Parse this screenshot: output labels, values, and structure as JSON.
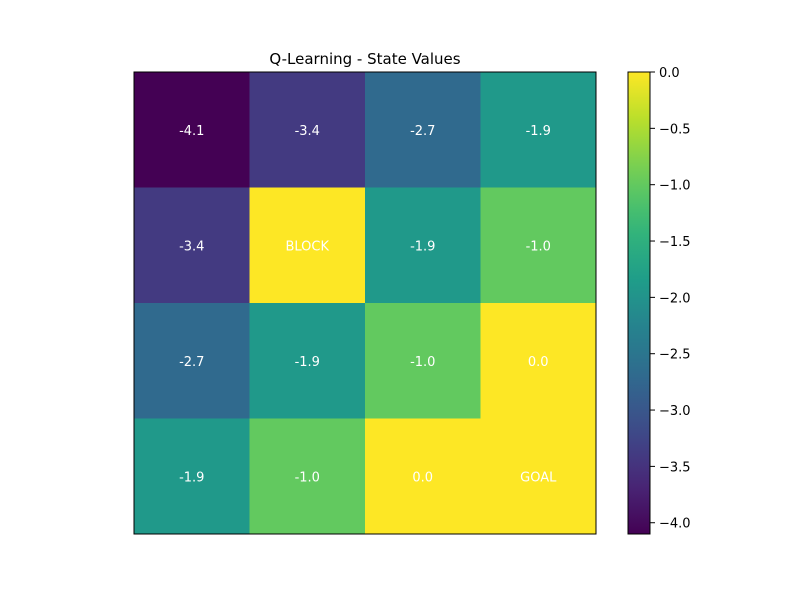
{
  "chart_data": {
    "type": "heatmap",
    "title": "Q-Learning - State Values",
    "xlabel": "",
    "ylabel": "",
    "rows": 4,
    "cols": 4,
    "values": [
      [
        -4.1,
        -3.4,
        -2.7,
        -1.9
      ],
      [
        -3.4,
        0.0,
        -1.9,
        -1.0
      ],
      [
        -2.7,
        -1.9,
        -1.0,
        0.0
      ],
      [
        -1.9,
        -1.0,
        0.0,
        0.0
      ]
    ],
    "cell_labels": [
      [
        "-4.1",
        "-3.4",
        "-2.7",
        "-1.9"
      ],
      [
        "-3.4",
        "BLOCK",
        "-1.9",
        "-1.0"
      ],
      [
        "-2.7",
        "-1.9",
        "-1.0",
        "0.0"
      ],
      [
        "-1.9",
        "-1.0",
        "0.0",
        "GOAL"
      ]
    ],
    "colormap": "viridis",
    "vmin": -4.1,
    "vmax": 0.0,
    "colorbar": {
      "ticks": [
        0.0,
        -0.5,
        -1.0,
        -1.5,
        -2.0,
        -2.5,
        -3.0,
        -3.5,
        -4.0
      ],
      "tick_labels": [
        "0.0",
        "−0.5",
        "−1.0",
        "−1.5",
        "−2.0",
        "−2.5",
        "−3.0",
        "−3.5",
        "−4.0"
      ]
    },
    "grid": false,
    "legend": "colorbar-right"
  }
}
